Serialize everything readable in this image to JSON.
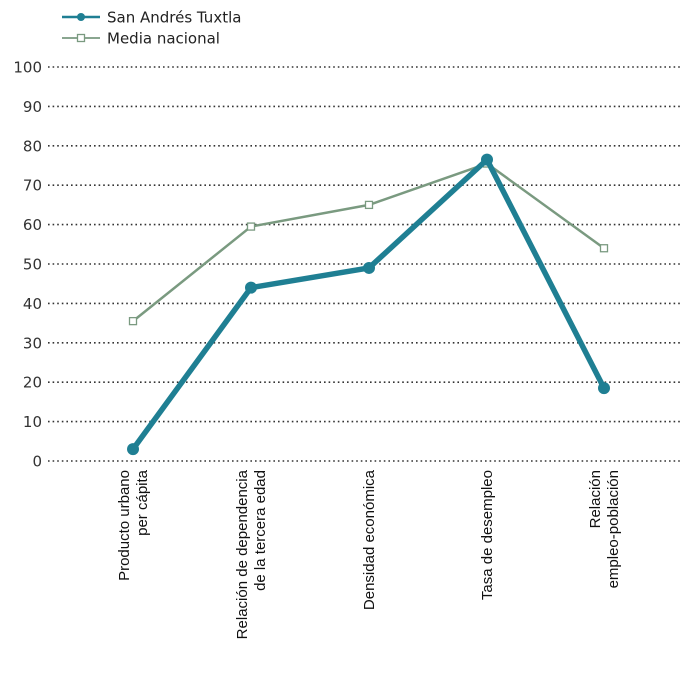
{
  "chart_data": {
    "type": "line",
    "categories": [
      [
        "Producto urbano",
        "per cápita"
      ],
      [
        "Relación de dependencia",
        "de la tercera edad"
      ],
      [
        "Densidad económica"
      ],
      [
        "Tasa de desempleo"
      ],
      [
        "Relación",
        "empleo-población"
      ]
    ],
    "series": [
      {
        "name": "San Andrés Tuxtla",
        "values": [
          3,
          44,
          49,
          76.5,
          18.5
        ],
        "color": "#1f7f93",
        "marker": "filled-circle"
      },
      {
        "name": "Media nacional",
        "values": [
          35.5,
          59.5,
          65,
          75.5,
          54
        ],
        "color": "#7a9a80",
        "marker": "hollow-square"
      }
    ],
    "ylim": [
      0,
      100
    ],
    "yticks": [
      0,
      10,
      20,
      30,
      40,
      50,
      60,
      70,
      80,
      90,
      100
    ],
    "grid": "horizontal-dotted",
    "legend_position": "top-left"
  }
}
